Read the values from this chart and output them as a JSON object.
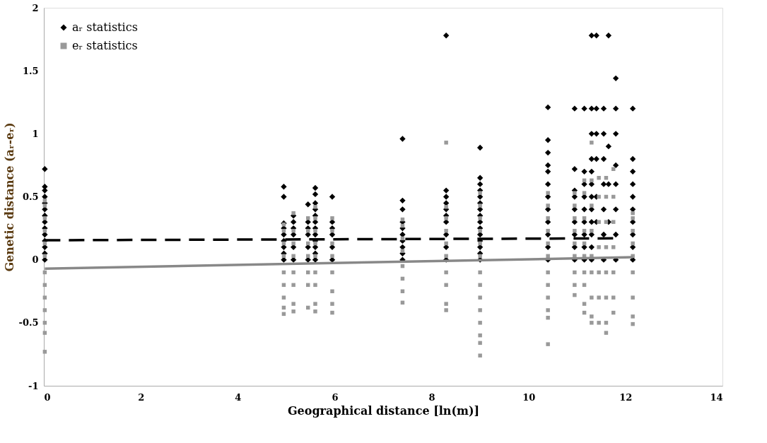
{
  "chart_data": {
    "type": "scatter",
    "xlabel": "Geographical distance [ln(m)]",
    "ylabel": "Genetic distance (aᵣ-eᵣ)",
    "xlim": [
      0,
      14
    ],
    "xticks": [
      0,
      2,
      4,
      6,
      8,
      10,
      12,
      14
    ],
    "ylim": [
      -1,
      2
    ],
    "yticks": [
      -1,
      -0.5,
      0,
      0.5,
      1,
      1.5,
      2
    ],
    "grid": false,
    "legend": "top left",
    "series": [
      {
        "name": "aᵣ statistics",
        "marker": "diamond",
        "color": "#000000",
        "x": [
          0.02,
          0.02,
          0.02,
          0.02,
          0.02,
          0.02,
          0.02,
          0.02,
          0.02,
          0.02,
          0.02,
          0.02,
          0.02,
          0.02,
          4.95,
          4.95,
          4.95,
          4.95,
          4.95,
          4.95,
          4.95,
          4.95,
          4.95,
          5.15,
          5.15,
          5.15,
          5.15,
          5.15,
          5.15,
          5.45,
          5.45,
          5.45,
          5.45,
          5.45,
          5.45,
          5.6,
          5.6,
          5.6,
          5.6,
          5.6,
          5.6,
          5.6,
          5.6,
          5.6,
          5.6,
          5.6,
          5.6,
          5.95,
          5.95,
          5.95,
          5.95,
          5.95,
          5.95,
          7.4,
          7.4,
          7.4,
          7.4,
          7.4,
          7.4,
          7.4,
          7.4,
          7.4,
          7.4,
          8.3,
          8.3,
          8.3,
          8.3,
          8.3,
          8.3,
          8.3,
          8.3,
          8.3,
          8.3,
          9.0,
          9.0,
          9.0,
          9.0,
          9.0,
          9.0,
          9.0,
          9.0,
          9.0,
          9.0,
          9.0,
          9.0,
          9.0,
          9.0,
          9.0,
          10.4,
          10.4,
          10.4,
          10.4,
          10.4,
          10.4,
          10.4,
          10.4,
          10.4,
          10.4,
          10.4,
          10.4,
          10.95,
          10.95,
          10.95,
          10.95,
          10.95,
          10.95,
          10.95,
          10.95,
          10.95,
          11.15,
          11.15,
          11.15,
          11.15,
          11.15,
          11.15,
          11.15,
          11.15,
          11.15,
          11.3,
          11.3,
          11.3,
          11.3,
          11.3,
          11.3,
          11.3,
          11.3,
          11.3,
          11.3,
          11.3,
          11.3,
          11.4,
          11.4,
          11.4,
          11.4,
          11.4,
          11.4,
          11.55,
          11.55,
          11.55,
          11.55,
          11.55,
          11.55,
          11.55,
          11.65,
          11.65,
          11.65,
          11.65,
          11.8,
          11.8,
          11.8,
          11.8,
          11.8,
          11.8,
          11.8,
          11.8,
          12.15,
          12.15,
          12.15,
          12.15,
          12.15,
          12.15,
          12.15,
          12.15,
          12.15,
          12.15
        ],
        "values": [
          0,
          0.05,
          0.1,
          0.15,
          0.2,
          0.25,
          0.3,
          0.35,
          0.4,
          0.45,
          0.5,
          0.55,
          0.58,
          0.72,
          0,
          0.05,
          0.1,
          0.15,
          0.2,
          0.25,
          0.29,
          0.5,
          0.58,
          0,
          0.1,
          0.2,
          0.25,
          0.3,
          0.35,
          0,
          0.1,
          0.2,
          0.25,
          0.3,
          0.44,
          0,
          0.05,
          0.1,
          0.15,
          0.2,
          0.25,
          0.3,
          0.35,
          0.4,
          0.45,
          0.52,
          0.57,
          0,
          0.1,
          0.2,
          0.25,
          0.3,
          0.5,
          0,
          0.05,
          0.1,
          0.15,
          0.2,
          0.25,
          0.3,
          0.4,
          0.47,
          0.96,
          0,
          0.1,
          0.2,
          0.3,
          0.35,
          0.4,
          0.45,
          0.5,
          0.55,
          1.78,
          0,
          0.05,
          0.1,
          0.15,
          0.2,
          0.25,
          0.3,
          0.35,
          0.4,
          0.45,
          0.5,
          0.55,
          0.6,
          0.65,
          0.89,
          0,
          0.1,
          0.2,
          0.3,
          0.4,
          0.5,
          0.6,
          0.7,
          0.75,
          0.85,
          0.95,
          1.21,
          0,
          0.1,
          0.2,
          0.3,
          0.4,
          0.5,
          0.55,
          0.72,
          1.2,
          0,
          0.1,
          0.2,
          0.3,
          0.4,
          0.5,
          0.6,
          0.7,
          1.2,
          0,
          0.1,
          0.2,
          0.3,
          0.4,
          0.5,
          0.6,
          0.7,
          0.8,
          1.0,
          1.2,
          1.78,
          0.3,
          0.5,
          0.8,
          1.0,
          1.2,
          1.78,
          0,
          0.2,
          0.4,
          0.6,
          0.8,
          1.0,
          1.2,
          0.3,
          0.6,
          0.9,
          1.78,
          0,
          0.2,
          0.4,
          0.6,
          0.75,
          1.0,
          1.2,
          1.44,
          0,
          0.1,
          0.2,
          0.3,
          0.4,
          0.5,
          0.6,
          0.7,
          0.8,
          1.2
        ]
      },
      {
        "name": "eᵣ statistics",
        "marker": "square",
        "color": "#999999",
        "x": [
          0.02,
          0.02,
          0.02,
          0.02,
          0.02,
          0.02,
          0.02,
          0.02,
          0.02,
          0.02,
          0.02,
          0.02,
          0.02,
          4.95,
          4.95,
          4.95,
          4.95,
          4.95,
          4.95,
          4.95,
          4.95,
          4.95,
          5.15,
          5.15,
          5.15,
          5.15,
          5.15,
          5.15,
          5.15,
          5.15,
          5.45,
          5.45,
          5.45,
          5.45,
          5.45,
          5.45,
          5.45,
          5.6,
          5.6,
          5.6,
          5.6,
          5.6,
          5.6,
          5.6,
          5.6,
          5.6,
          5.95,
          5.95,
          5.95,
          5.95,
          5.95,
          5.95,
          5.95,
          5.95,
          7.4,
          7.4,
          7.4,
          7.4,
          7.4,
          7.4,
          7.4,
          7.4,
          8.3,
          8.3,
          8.3,
          8.3,
          8.3,
          8.3,
          8.3,
          8.3,
          8.3,
          8.3,
          9.0,
          9.0,
          9.0,
          9.0,
          9.0,
          9.0,
          9.0,
          9.0,
          9.0,
          9.0,
          9.0,
          9.0,
          9.0,
          9.0,
          10.4,
          10.4,
          10.4,
          10.4,
          10.4,
          10.4,
          10.4,
          10.4,
          10.4,
          10.4,
          10.4,
          10.4,
          10.95,
          10.95,
          10.95,
          10.95,
          10.95,
          10.95,
          10.95,
          10.95,
          10.95,
          11.15,
          11.15,
          11.15,
          11.15,
          11.15,
          11.15,
          11.15,
          11.15,
          11.15,
          11.15,
          11.3,
          11.3,
          11.3,
          11.3,
          11.3,
          11.3,
          11.3,
          11.3,
          11.3,
          11.45,
          11.45,
          11.45,
          11.45,
          11.45,
          11.45,
          11.45,
          11.6,
          11.6,
          11.6,
          11.6,
          11.6,
          11.6,
          11.6,
          11.6,
          11.75,
          11.75,
          11.75,
          11.75,
          11.75,
          11.75,
          11.75,
          12.15,
          12.15,
          12.15,
          12.15,
          12.15,
          12.15,
          12.15,
          12.15,
          12.15
        ],
        "values": [
          -0.73,
          -0.58,
          -0.5,
          -0.4,
          -0.3,
          -0.2,
          -0.1,
          0.03,
          0.13,
          0.23,
          0.33,
          0.43,
          0.47,
          -0.43,
          -0.38,
          -0.3,
          -0.2,
          -0.1,
          0.03,
          0.13,
          0.23,
          0.28,
          -0.41,
          -0.35,
          -0.2,
          -0.1,
          0.03,
          0.13,
          0.23,
          0.37,
          -0.38,
          -0.2,
          -0.1,
          0.03,
          0.13,
          0.23,
          0.33,
          -0.41,
          -0.35,
          -0.2,
          -0.1,
          0.03,
          0.13,
          0.23,
          0.33,
          0.42,
          -0.42,
          -0.35,
          -0.25,
          -0.1,
          0.03,
          0.13,
          0.23,
          0.33,
          -0.34,
          -0.25,
          -0.15,
          -0.05,
          0.07,
          0.17,
          0.27,
          0.32,
          -0.4,
          -0.35,
          -0.2,
          -0.1,
          0.03,
          0.13,
          0.23,
          0.33,
          0.42,
          0.93,
          -0.76,
          -0.66,
          -0.6,
          -0.5,
          -0.4,
          -0.3,
          -0.2,
          -0.1,
          0.03,
          0.13,
          0.23,
          0.33,
          0.43,
          0.53,
          -0.67,
          -0.46,
          -0.4,
          -0.3,
          -0.2,
          -0.1,
          0.03,
          0.13,
          0.23,
          0.33,
          0.43,
          0.53,
          -0.28,
          -0.2,
          -0.1,
          0.03,
          0.13,
          0.23,
          0.33,
          0.43,
          0.53,
          -0.42,
          -0.35,
          -0.2,
          -0.1,
          0.03,
          0.13,
          0.23,
          0.33,
          0.53,
          0.63,
          -0.5,
          -0.45,
          -0.3,
          -0.1,
          0.03,
          0.23,
          0.43,
          0.63,
          0.93,
          -0.5,
          -0.3,
          -0.1,
          0.1,
          0.3,
          0.5,
          0.65,
          -0.58,
          -0.5,
          -0.3,
          -0.1,
          0.1,
          0.3,
          0.5,
          0.65,
          -0.42,
          -0.3,
          -0.1,
          0.1,
          0.3,
          0.5,
          0.72,
          -0.51,
          -0.45,
          -0.3,
          -0.1,
          0.03,
          0.13,
          0.23,
          0.33,
          0.37
        ]
      },
      {
        "type": "line",
        "line_style": "dashed",
        "color": "#000000",
        "x": [
          0.02,
          11.8
        ],
        "values": [
          0.155,
          0.17
        ]
      },
      {
        "type": "line",
        "line_style": "solid",
        "color": "#888888",
        "x": [
          0.02,
          12.15
        ],
        "values": [
          -0.07,
          0.02
        ]
      }
    ]
  }
}
